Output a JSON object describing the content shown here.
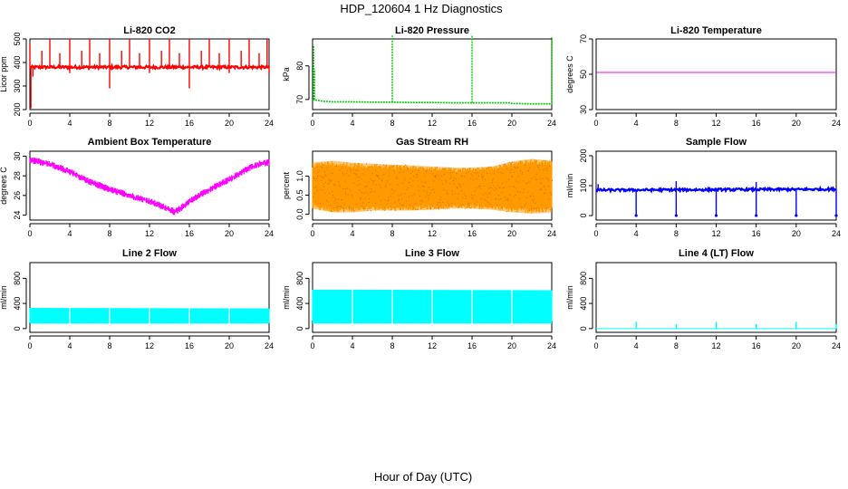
{
  "figure": {
    "title": "HDP_120604  1 Hz Diagnostics",
    "xlabel": "Hour of Day (UTC)"
  },
  "chart_data": [
    {
      "type": "line",
      "title": "Li-820 CO2",
      "ylabel": "Licor ppm",
      "color": "#ff0000",
      "xlim": [
        0,
        24
      ],
      "ylim": [
        200,
        500
      ],
      "xticks": [
        0,
        4,
        8,
        12,
        16,
        20,
        24
      ],
      "yticks": [
        200,
        300,
        400,
        500
      ],
      "data": {
        "x": [
          0,
          24
        ],
        "baseline": [
          380,
          380
        ],
        "noise": 6,
        "spikes_up": [
          [
            0.0,
            480
          ],
          [
            1.2,
            450
          ],
          [
            2.0,
            500
          ],
          [
            3.0,
            440
          ],
          [
            4.0,
            500
          ],
          [
            5.2,
            450
          ],
          [
            6.0,
            500
          ],
          [
            7.0,
            440
          ],
          [
            8.0,
            500
          ],
          [
            9.2,
            450
          ],
          [
            10.0,
            500
          ],
          [
            11.0,
            440
          ],
          [
            12.0,
            500
          ],
          [
            13.2,
            450
          ],
          [
            14.0,
            500
          ],
          [
            15.0,
            440
          ],
          [
            16.0,
            500
          ],
          [
            17.2,
            450
          ],
          [
            18.0,
            500
          ],
          [
            19.0,
            440
          ],
          [
            20.0,
            500
          ],
          [
            21.2,
            450
          ],
          [
            22.0,
            500
          ],
          [
            23.0,
            440
          ],
          [
            23.8,
            500
          ]
        ],
        "spikes_down": [
          [
            0.1,
            205
          ],
          [
            0.3,
            340
          ],
          [
            4.0,
            355
          ],
          [
            8.0,
            290
          ],
          [
            12.0,
            355
          ],
          [
            16.0,
            290
          ],
          [
            20.0,
            355
          ],
          [
            24.0,
            350
          ]
        ]
      }
    },
    {
      "type": "line",
      "title": "Li-820 Pressure",
      "ylabel": "kPa",
      "color": "#00cc00",
      "xlim": [
        0,
        24
      ],
      "ylim": [
        67,
        88
      ],
      "xticks": [
        0,
        4,
        8,
        12,
        16,
        20,
        24
      ],
      "yticks": [
        70,
        80
      ],
      "data": {
        "x": [
          0,
          1,
          2,
          4,
          6,
          8,
          10,
          12,
          14,
          16,
          18,
          19.8,
          20,
          22,
          24
        ],
        "y": [
          70,
          69.5,
          69.3,
          69.3,
          69.2,
          69.2,
          69.1,
          69.1,
          69.0,
          69.0,
          69.0,
          69.0,
          68.8,
          68.7,
          68.7
        ],
        "spikes_up": [
          [
            0.1,
            86
          ],
          [
            0.2,
            79
          ],
          [
            8.0,
            89
          ],
          [
            16.0,
            89
          ],
          [
            24.0,
            88.5
          ]
        ]
      }
    },
    {
      "type": "line",
      "title": "Li-820 Temperature",
      "ylabel": "degrees C",
      "color": "#ff00ff",
      "xlim": [
        0,
        24
      ],
      "ylim": [
        30,
        70
      ],
      "xticks": [
        0,
        4,
        8,
        12,
        16,
        20,
        24
      ],
      "yticks": [
        30,
        50,
        70
      ],
      "data": {
        "x": [
          0,
          24
        ],
        "y": [
          51,
          51
        ]
      }
    },
    {
      "type": "line",
      "title": "Ambient Box Temperature",
      "ylabel": "degrees C",
      "color": "#ff00ff",
      "xlim": [
        0,
        24
      ],
      "ylim": [
        23.5,
        30.5
      ],
      "xticks": [
        0,
        4,
        8,
        12,
        16,
        20,
        24
      ],
      "yticks": [
        24,
        26,
        28,
        30
      ],
      "data": {
        "x": [
          0,
          2,
          4,
          6,
          8,
          10,
          12,
          14,
          14.5,
          15,
          16,
          18,
          20,
          22,
          23,
          24
        ],
        "y": [
          29.6,
          29.2,
          28.4,
          27.4,
          26.6,
          26.0,
          25.4,
          24.6,
          24.3,
          24.6,
          25.4,
          26.6,
          27.6,
          28.8,
          29.2,
          29.4
        ],
        "noise": 0.35
      }
    },
    {
      "type": "line",
      "title": "Gas Stream RH",
      "ylabel": "percent",
      "color": "#ff9900",
      "xlim": [
        0,
        24
      ],
      "ylim": [
        -0.15,
        1.65
      ],
      "xticks": [
        0,
        4,
        8,
        12,
        16,
        20,
        24
      ],
      "yticks": [
        0.0,
        0.5,
        1.0
      ],
      "data": {
        "x": [
          0,
          2,
          4,
          6,
          8,
          10,
          12,
          14,
          16,
          18,
          20,
          22,
          24
        ],
        "y_upper": [
          1.35,
          1.4,
          1.35,
          1.32,
          1.3,
          1.28,
          1.25,
          1.22,
          1.22,
          1.25,
          1.38,
          1.45,
          1.4
        ],
        "y_lower": [
          0.15,
          0.05,
          0.05,
          0.1,
          0.1,
          0.1,
          0.12,
          0.15,
          0.15,
          0.12,
          0.05,
          0.02,
          0.05
        ]
      }
    },
    {
      "type": "line",
      "title": "Sample Flow",
      "ylabel": "ml/min",
      "color": "#0000ff",
      "xlim": [
        0,
        24
      ],
      "ylim": [
        -15,
        215
      ],
      "xticks": [
        0,
        4,
        8,
        12,
        16,
        20,
        24
      ],
      "yticks": [
        0,
        100,
        200
      ],
      "data": {
        "x": [
          0,
          24
        ],
        "baseline": [
          85,
          88
        ],
        "noise": 4,
        "spikes_up": [
          [
            0.2,
            105
          ],
          [
            8.0,
            115
          ],
          [
            16.0,
            112
          ]
        ],
        "spikes_down": [
          [
            4.0,
            0
          ],
          [
            8.0,
            0
          ],
          [
            12.0,
            0
          ],
          [
            16.0,
            0
          ],
          [
            20.0,
            0
          ],
          [
            24.0,
            0
          ]
        ]
      }
    },
    {
      "type": "line",
      "title": "Line 2 Flow",
      "ylabel": "ml/min",
      "color": "#00ffff",
      "xlim": [
        0,
        24
      ],
      "ylim": [
        -60,
        1050
      ],
      "xticks": [
        0,
        4,
        8,
        12,
        16,
        20,
        24
      ],
      "yticks": [
        0,
        400,
        800
      ],
      "data": {
        "x": [
          0,
          24
        ],
        "y_upper": [
          330,
          320
        ],
        "y_lower": [
          80,
          80
        ],
        "gaps": [
          4,
          8,
          12,
          16,
          20
        ]
      }
    },
    {
      "type": "line",
      "title": "Line 3 Flow",
      "ylabel": "ml/min",
      "color": "#00ffff",
      "xlim": [
        0,
        24
      ],
      "ylim": [
        -60,
        1050
      ],
      "xticks": [
        0,
        4,
        8,
        12,
        16,
        20,
        24
      ],
      "yticks": [
        0,
        400,
        800
      ],
      "data": {
        "x": [
          0,
          24
        ],
        "y_upper": [
          620,
          610
        ],
        "y_lower": [
          80,
          80
        ],
        "gaps": [
          4,
          8,
          12,
          16,
          20
        ]
      }
    },
    {
      "type": "line",
      "title": "Line 4 (LT) Flow",
      "ylabel": "ml/min",
      "color": "#00ffff",
      "xlim": [
        0,
        24
      ],
      "ylim": [
        -60,
        1050
      ],
      "xticks": [
        0,
        4,
        8,
        12,
        16,
        20,
        24
      ],
      "yticks": [
        0,
        400,
        800
      ],
      "data": {
        "x": [
          0,
          24
        ],
        "y": [
          0,
          0
        ],
        "spikes_up": [
          [
            4.0,
            110
          ],
          [
            8.0,
            70
          ],
          [
            12.0,
            110
          ],
          [
            16.0,
            70
          ],
          [
            20.0,
            110
          ],
          [
            24.0,
            70
          ]
        ]
      }
    }
  ]
}
